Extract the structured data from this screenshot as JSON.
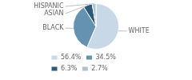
{
  "chart_data": {
    "type": "pie",
    "categories": [
      "WHITE",
      "BLACK",
      "ASIAN",
      "HISPANIC"
    ],
    "values": [
      56.4,
      34.5,
      6.3,
      2.7
    ],
    "value_labels": [
      "56.4%",
      "34.5%",
      "6.3%",
      "2.7%"
    ],
    "colors": [
      "#c8d8e6",
      "#6492b0",
      "#2d5a78",
      "#b0c4d4"
    ],
    "legend": "lower left"
  }
}
